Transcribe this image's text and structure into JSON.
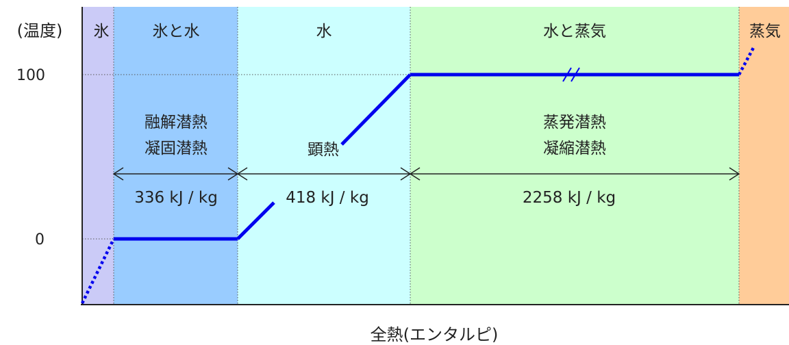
{
  "axis": {
    "y_title": "(温度)",
    "y_ticks": [
      "100",
      "0"
    ],
    "x_title": "全熱(エンタルピ)"
  },
  "regions": [
    {
      "label": "氷",
      "color": "#CBCBF7"
    },
    {
      "label": "氷と水",
      "color": "#99CCFF"
    },
    {
      "label": "水",
      "color": "#CCFFFF"
    },
    {
      "label": "水と蒸気",
      "color": "#CCFFCC"
    },
    {
      "label": "蒸気",
      "color": "#FFCC99"
    }
  ],
  "latent_heat": {
    "fusion_line1": "融解潜熱",
    "fusion_line2": "凝固潜熱",
    "sensible": "顕熱",
    "evaporation_line1": "蒸発潜熱",
    "evaporation_line2": "凝縮潜熱"
  },
  "energies": {
    "fusion": "336 kJ / kg",
    "sensible": "418 kJ / kg",
    "evaporation": "2258 kJ / kg"
  },
  "colors": {
    "curve": "#0000EE",
    "axis": "#222222",
    "arrow": "#222222",
    "divider": "#555555"
  },
  "chart_data": {
    "type": "line",
    "title": "",
    "xlabel": "全熱(エンタルピ)",
    "ylabel": "(温度)",
    "yticks": [
      0,
      100
    ],
    "x_units": "kJ / kg",
    "segments": [
      {
        "phase": "氷と水",
        "temperature": 0,
        "enthalpy_change": 336
      },
      {
        "phase": "水",
        "temperature_from": 0,
        "temperature_to": 100,
        "enthalpy_change": 418
      },
      {
        "phase": "水と蒸気",
        "temperature": 100,
        "enthalpy_change": 2258
      }
    ]
  }
}
